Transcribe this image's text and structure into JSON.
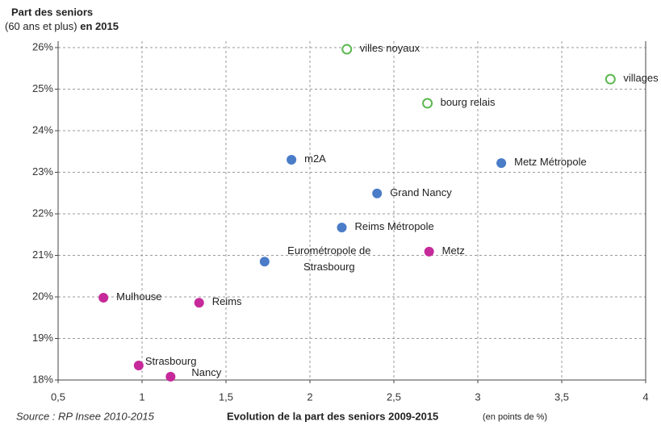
{
  "chart_data": {
    "type": "scatter",
    "title": [
      "Part des seniors",
      "(60 ans et plus)",
      "en 2015"
    ],
    "x_label": "Evolution de la part des seniors 2009-2015",
    "x_label_unit": "(en points de %)",
    "source": "Source : RP Insee 2010-2015",
    "xlim": [
      0.5,
      4
    ],
    "xticks": [
      {
        "value": 0.5,
        "label": "0,5"
      },
      1,
      {
        "value": 1.5,
        "label": "1,5"
      },
      2,
      {
        "value": 2.5,
        "label": "2,5"
      },
      3,
      {
        "value": 3.5,
        "label": "3,5"
      },
      4
    ],
    "ylim": [
      18,
      26
    ],
    "yticks": [
      {
        "value": 18,
        "label": "18%"
      },
      {
        "value": 19,
        "label": "19%"
      },
      {
        "value": 20,
        "label": "20%"
      },
      {
        "value": 21,
        "label": "21%"
      },
      {
        "value": 22,
        "label": "22%"
      },
      {
        "value": 23,
        "label": "23%"
      },
      {
        "value": 24,
        "label": "24%"
      },
      {
        "value": 25,
        "label": "25%"
      },
      {
        "value": 26,
        "label": "26%"
      }
    ],
    "grid": true,
    "series": [
      {
        "color": "#5bb84f",
        "marker": "open",
        "x": [
          2.22,
          3.79,
          2.7
        ],
        "y": [
          25.96,
          25.24,
          24.66
        ],
        "labels": [
          [
            "villes noyaux"
          ],
          [
            "villages"
          ],
          [
            "bourg relais"
          ]
        ]
      },
      {
        "color": "#4a7cc7",
        "marker": "filled",
        "x": [
          1.89,
          3.14,
          2.4,
          2.19,
          1.73
        ],
        "y": [
          23.3,
          23.22,
          22.49,
          21.67,
          20.85
        ],
        "labels": [
          [
            "m2A"
          ],
          [
            "Metz Métropole"
          ],
          [
            "Grand Nancy"
          ],
          [
            "Reims Métropole"
          ],
          [
            "Eurométropole de",
            "Strasbourg"
          ]
        ]
      },
      {
        "color": "#c6299a",
        "marker": "filled",
        "x": [
          2.71,
          0.77,
          1.34,
          0.98,
          1.17
        ],
        "y": [
          21.09,
          19.98,
          19.86,
          18.35,
          18.08
        ],
        "labels": [
          [
            "Metz"
          ],
          [
            "Mulhouse"
          ],
          [
            "Reims"
          ],
          [
            "Strasbourg"
          ],
          [
            "Nancy"
          ]
        ]
      }
    ]
  }
}
